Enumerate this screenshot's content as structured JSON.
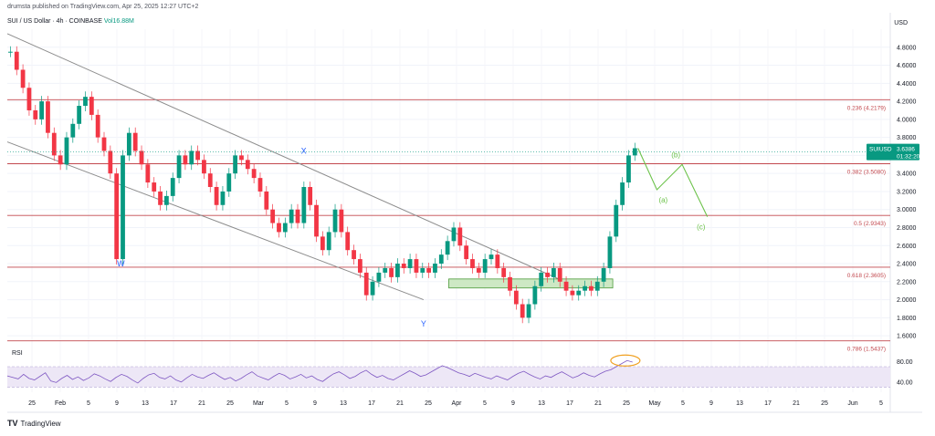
{
  "header": {
    "publisher": "drumsta published on TradingView.com, Apr 25, 2025 12:27 UTC+2",
    "symbol": "SUI / US Dollar · 4h · COINBASE",
    "volume": "Vol16.88M",
    "currency": "USD"
  },
  "footer": {
    "brand": "TradingView"
  },
  "rsi": {
    "title": "RSI",
    "ticks": [
      40,
      80
    ],
    "values": [
      52,
      49,
      46,
      55,
      47,
      44,
      51,
      58,
      42,
      39,
      47,
      53,
      45,
      50,
      43,
      48,
      56,
      52,
      46,
      41,
      49,
      55,
      51,
      44,
      38,
      47,
      54,
      57,
      49,
      46,
      52,
      44,
      40,
      48,
      55,
      50,
      47,
      53,
      58,
      51,
      45,
      49,
      42,
      47,
      54,
      60,
      52,
      48,
      44,
      51,
      57,
      53,
      46,
      50,
      55,
      48,
      52,
      45,
      41,
      49,
      56,
      60,
      54,
      47,
      51,
      58,
      63,
      55,
      49,
      53,
      47,
      44,
      50,
      56,
      62,
      57,
      51,
      54,
      60,
      66,
      72,
      68,
      63,
      58,
      55,
      51,
      57,
      53,
      49,
      46,
      52,
      48,
      44,
      51,
      57,
      61,
      55,
      50,
      46,
      52,
      49,
      55,
      60,
      54,
      48,
      52,
      58,
      53,
      50,
      56,
      61,
      64,
      70,
      76,
      82,
      79
    ],
    "overbought_marker_label": ""
  },
  "colors": {
    "candle_up": "#089981",
    "candle_down": "#f23645",
    "fib_line": "#c2484e",
    "channel": "#8c8c8c",
    "rsi_line": "#7e57c2",
    "rsi_band": "#ede7f6",
    "projection": "#6cc24a",
    "box_fill": "#cde8c4",
    "box_stroke": "#4c9a3a",
    "marker_circle": "#f0a020"
  },
  "chart_data": {
    "type": "line",
    "title": "SUI / US Dollar · 4h · COINBASE",
    "ylabel": "USD",
    "ylim": [
      1.5,
      5.0
    ],
    "y_ticks": [
      1.6,
      1.8,
      2.0,
      2.2,
      2.4,
      2.6,
      2.8,
      3.0,
      3.2,
      3.4,
      3.6,
      3.8,
      4.0,
      4.2,
      4.4,
      4.6,
      4.8
    ],
    "x_tick_labels": [
      "25",
      "Feb",
      "5",
      "9",
      "13",
      "17",
      "21",
      "25",
      "Mar",
      "5",
      "9",
      "13",
      "17",
      "21",
      "25",
      "Apr",
      "5",
      "9",
      "13",
      "17",
      "21",
      "25",
      "May",
      "5",
      "9",
      "13",
      "17",
      "21",
      "25",
      "Jun",
      "5"
    ],
    "price_series": {
      "name": "SUIUSD",
      "values": [
        4.75,
        4.55,
        4.35,
        4.1,
        4.0,
        4.2,
        3.85,
        3.6,
        3.5,
        3.8,
        3.95,
        4.15,
        4.25,
        4.05,
        3.8,
        3.65,
        3.4,
        2.45,
        3.6,
        3.85,
        3.65,
        3.5,
        3.3,
        3.2,
        3.05,
        3.15,
        3.35,
        3.6,
        3.5,
        3.65,
        3.55,
        3.4,
        3.25,
        3.05,
        3.2,
        3.4,
        3.6,
        3.55,
        3.45,
        3.35,
        3.2,
        3.0,
        2.85,
        2.75,
        2.85,
        3.0,
        2.85,
        3.25,
        3.05,
        2.7,
        2.55,
        2.75,
        3.0,
        2.75,
        2.55,
        2.45,
        2.3,
        2.05,
        2.2,
        2.3,
        2.35,
        2.25,
        2.4,
        2.35,
        2.45,
        2.3,
        2.35,
        2.3,
        2.4,
        2.5,
        2.65,
        2.8,
        2.6,
        2.45,
        2.35,
        2.3,
        2.45,
        2.5,
        2.35,
        2.25,
        2.1,
        1.95,
        1.8,
        1.95,
        2.15,
        2.3,
        2.25,
        2.35,
        2.2,
        2.1,
        2.05,
        2.1,
        2.15,
        2.1,
        2.2,
        2.35,
        2.7,
        3.05,
        3.3,
        3.6,
        3.68
      ],
      "last_price": "3.6386",
      "last_label": "SUIUSD",
      "countdown": "01:32:20"
    },
    "fib_levels": [
      {
        "label": "0.236 (4.2179)",
        "value": 4.2179
      },
      {
        "label": "0.382 (3.5080)",
        "value": 3.508
      },
      {
        "label": "0.5 (2.9343)",
        "value": 2.9343
      },
      {
        "label": "0.618 (2.3605)",
        "value": 2.3605
      },
      {
        "label": "0.786 (1.5437)",
        "value": 1.5437
      }
    ],
    "wave_labels": [
      {
        "text": "W",
        "x_index": 18,
        "value": 2.37
      },
      {
        "text": "X",
        "x_index": 47,
        "value": 3.62
      },
      {
        "text": "Y",
        "x_index": 66,
        "value": 1.7
      },
      {
        "text": "(a)",
        "x_index": 104,
        "value": 3.08
      },
      {
        "text": "(b)",
        "x_index": 106,
        "value": 3.58
      },
      {
        "text": "(c)",
        "x_index": 110,
        "value": 2.78
      }
    ],
    "projection_path": [
      [
        100,
        3.68
      ],
      [
        103,
        3.22
      ],
      [
        107,
        3.5
      ],
      [
        111,
        2.92
      ]
    ],
    "channel_upper": [
      [
        0,
        4.95
      ],
      [
        90,
        2.15
      ]
    ],
    "channel_lower": [
      [
        0,
        3.75
      ],
      [
        66,
        2.0
      ]
    ],
    "support_box": {
      "x_start": 70,
      "x_end": 96,
      "y_low": 2.13,
      "y_high": 2.23
    },
    "grid": true,
    "legend": "none"
  }
}
